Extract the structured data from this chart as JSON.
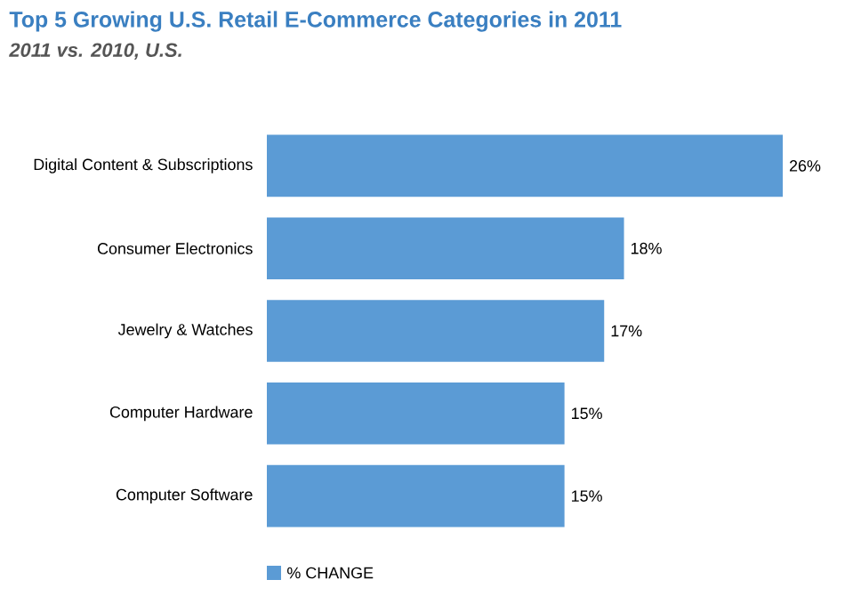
{
  "chart_data": {
    "type": "bar",
    "orientation": "horizontal",
    "title": "Top 5 Growing U.S. Retail E-Commerce Categories in 2011",
    "subtitle": "2011 vs. 2010, U.S.",
    "categories": [
      "Digital Content & Subscriptions",
      "Consumer Electronics",
      "Jewelry & Watches",
      "Computer Hardware",
      "Computer Software"
    ],
    "series": [
      {
        "name": "% CHANGE",
        "color": "#5b9bd5",
        "values": [
          26,
          18,
          17,
          15,
          15
        ],
        "value_labels": [
          "26%",
          "18%",
          "17%",
          "15%",
          "15%"
        ]
      }
    ],
    "legend": "bottom"
  }
}
